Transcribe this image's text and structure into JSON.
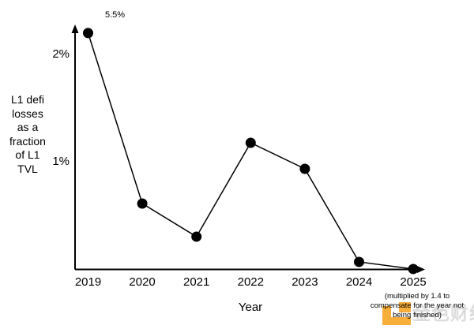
{
  "chart_data": {
    "type": "line",
    "title": "",
    "xlabel": "Year",
    "ylabel": "L1 defi\nlosses\nas a\nfraction\nof L1\nTVL",
    "categories": [
      "2019",
      "2020",
      "2021",
      "2022",
      "2023",
      "2024",
      "2025"
    ],
    "values_percent": [
      5.5,
      0.61,
      0.31,
      1.18,
      0.94,
      0.07,
      0.01
    ],
    "plotted_percent": [
      2.199,
      0.613,
      0.305,
      1.178,
      0.936,
      0.07,
      0.004
    ],
    "point_label_2019": "5.5%",
    "y_ticks": [
      {
        "label": "2%",
        "value": 2
      },
      {
        "label": "1%",
        "value": 1
      }
    ],
    "ylim": [
      0,
      2.27
    ],
    "grid": false,
    "legend": "none",
    "marker": "filled-circle",
    "line_color": "#000000",
    "marker_color": "#000000",
    "annotation": "(multiplied by 1.4 to\ncompensate for the year not\nbeing finished)"
  },
  "watermark": {
    "text": "金色财经",
    "logo_color": "#F7A82A",
    "text_color": "#b9b9b9"
  }
}
